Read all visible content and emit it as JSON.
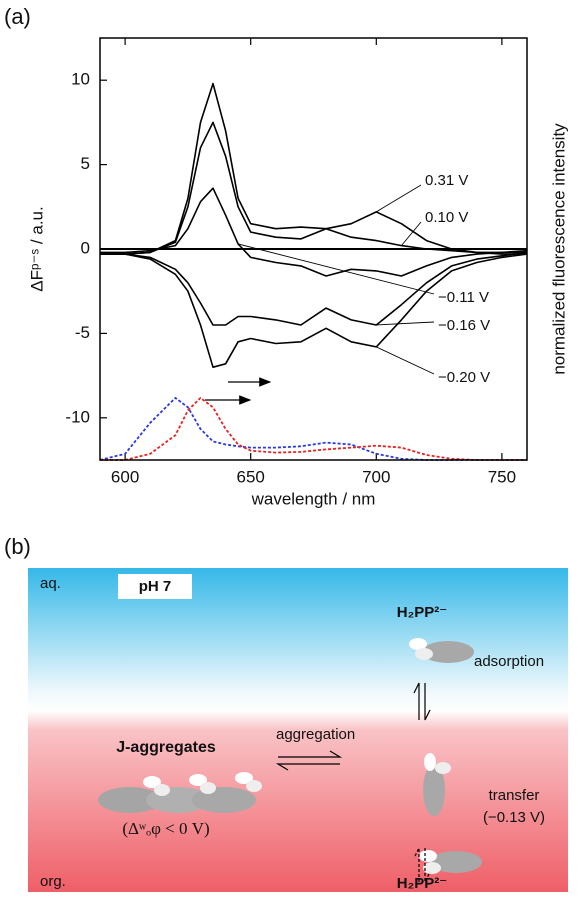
{
  "panel_labels": [
    "(a)",
    "(b)"
  ],
  "chart_data": {
    "type": "line",
    "x_label": "wavelength / nm",
    "y_label": "ΔFᵖ⁻ˢ / a.u.",
    "y2_label": "normalized fluorescence intensity",
    "x": [
      590,
      600,
      610,
      620,
      625,
      630,
      635,
      640,
      645,
      650,
      660,
      670,
      680,
      690,
      700,
      710,
      720,
      730,
      740,
      750,
      760
    ],
    "xlim": [
      590,
      760
    ],
    "xticks": [
      600,
      650,
      700,
      750
    ],
    "ylim": [
      -12.5,
      12.5
    ],
    "yticks": [
      -10,
      -5,
      0,
      5,
      10
    ],
    "y2lim": [
      0,
      6.8
    ],
    "series": [
      {
        "name": "0.31 V",
        "color": "#000000",
        "style": "solid",
        "values": [
          -0.3,
          -0.3,
          -0.2,
          0.5,
          3,
          7.5,
          9.8,
          7,
          3,
          1.5,
          1.2,
          1.3,
          1.2,
          1.5,
          2.2,
          1.5,
          0.5,
          0,
          -0.2,
          -0.3,
          -0.3
        ]
      },
      {
        "name": "0.10 V",
        "color": "#000000",
        "style": "solid",
        "values": [
          -0.3,
          -0.3,
          -0.2,
          0.4,
          2.5,
          6,
          7.5,
          5.5,
          2.5,
          1,
          0.7,
          0.6,
          1.2,
          0.7,
          0.5,
          0.2,
          0,
          -0.1,
          -0.2,
          -0.2,
          -0.2
        ]
      },
      {
        "name": "−0.11 V",
        "color": "#000000",
        "style": "solid",
        "values": [
          -0.2,
          -0.2,
          -0.1,
          0.2,
          1.2,
          2.8,
          3.6,
          2,
          0.3,
          -0.5,
          -0.8,
          -1,
          -1.6,
          -1.2,
          -1.3,
          -1.6,
          -1,
          -0.5,
          -0.3,
          -0.2,
          -0.1
        ]
      },
      {
        "name": "−0.16 V",
        "color": "#000000",
        "style": "solid",
        "values": [
          -0.3,
          -0.3,
          -0.5,
          -1.2,
          -2,
          -3.2,
          -4.5,
          -4.5,
          -4,
          -4,
          -4.2,
          -4.5,
          -3.5,
          -4.2,
          -4.5,
          -3.3,
          -2,
          -1,
          -0.6,
          -0.4,
          -0.2
        ]
      },
      {
        "name": "−0.20 V",
        "color": "#000000",
        "style": "solid",
        "values": [
          -0.3,
          -0.3,
          -0.6,
          -1.5,
          -2.5,
          -4.5,
          -7,
          -6.8,
          -5.5,
          -5.3,
          -5.6,
          -5.5,
          -4.7,
          -5.5,
          -5.8,
          -4.2,
          -2.5,
          -1.3,
          -0.8,
          -0.5,
          -0.3
        ]
      },
      {
        "color": "#2a3adf",
        "style": "dotted",
        "axis": "y2",
        "values": [
          0,
          0.1,
          0.6,
          1,
          0.85,
          0.5,
          0.3,
          0.25,
          0.22,
          0.2,
          0.2,
          0.22,
          0.28,
          0.25,
          0.1,
          0.02,
          0,
          0,
          0,
          0,
          0
        ]
      },
      {
        "color": "#e8231f",
        "style": "dotted",
        "axis": "y2",
        "values": [
          0,
          0,
          0.1,
          0.4,
          0.8,
          1,
          0.85,
          0.5,
          0.25,
          0.15,
          0.12,
          0.13,
          0.17,
          0.2,
          0.23,
          0.2,
          0.08,
          0.02,
          0,
          0,
          0
        ]
      }
    ]
  },
  "diagram": {
    "aq": "aq.",
    "org": "org.",
    "ph": "pH 7",
    "species_top": "H₂PP²⁻",
    "species_bottom": "H₂PP²⁻",
    "adsorption": "adsorption",
    "aggregation": "aggregation",
    "j_aggregates": "J-aggregates",
    "condition": "(Δʷₒφ < 0 V)",
    "transfer": "transfer",
    "transfer_potential": "(−0.13 V)"
  }
}
